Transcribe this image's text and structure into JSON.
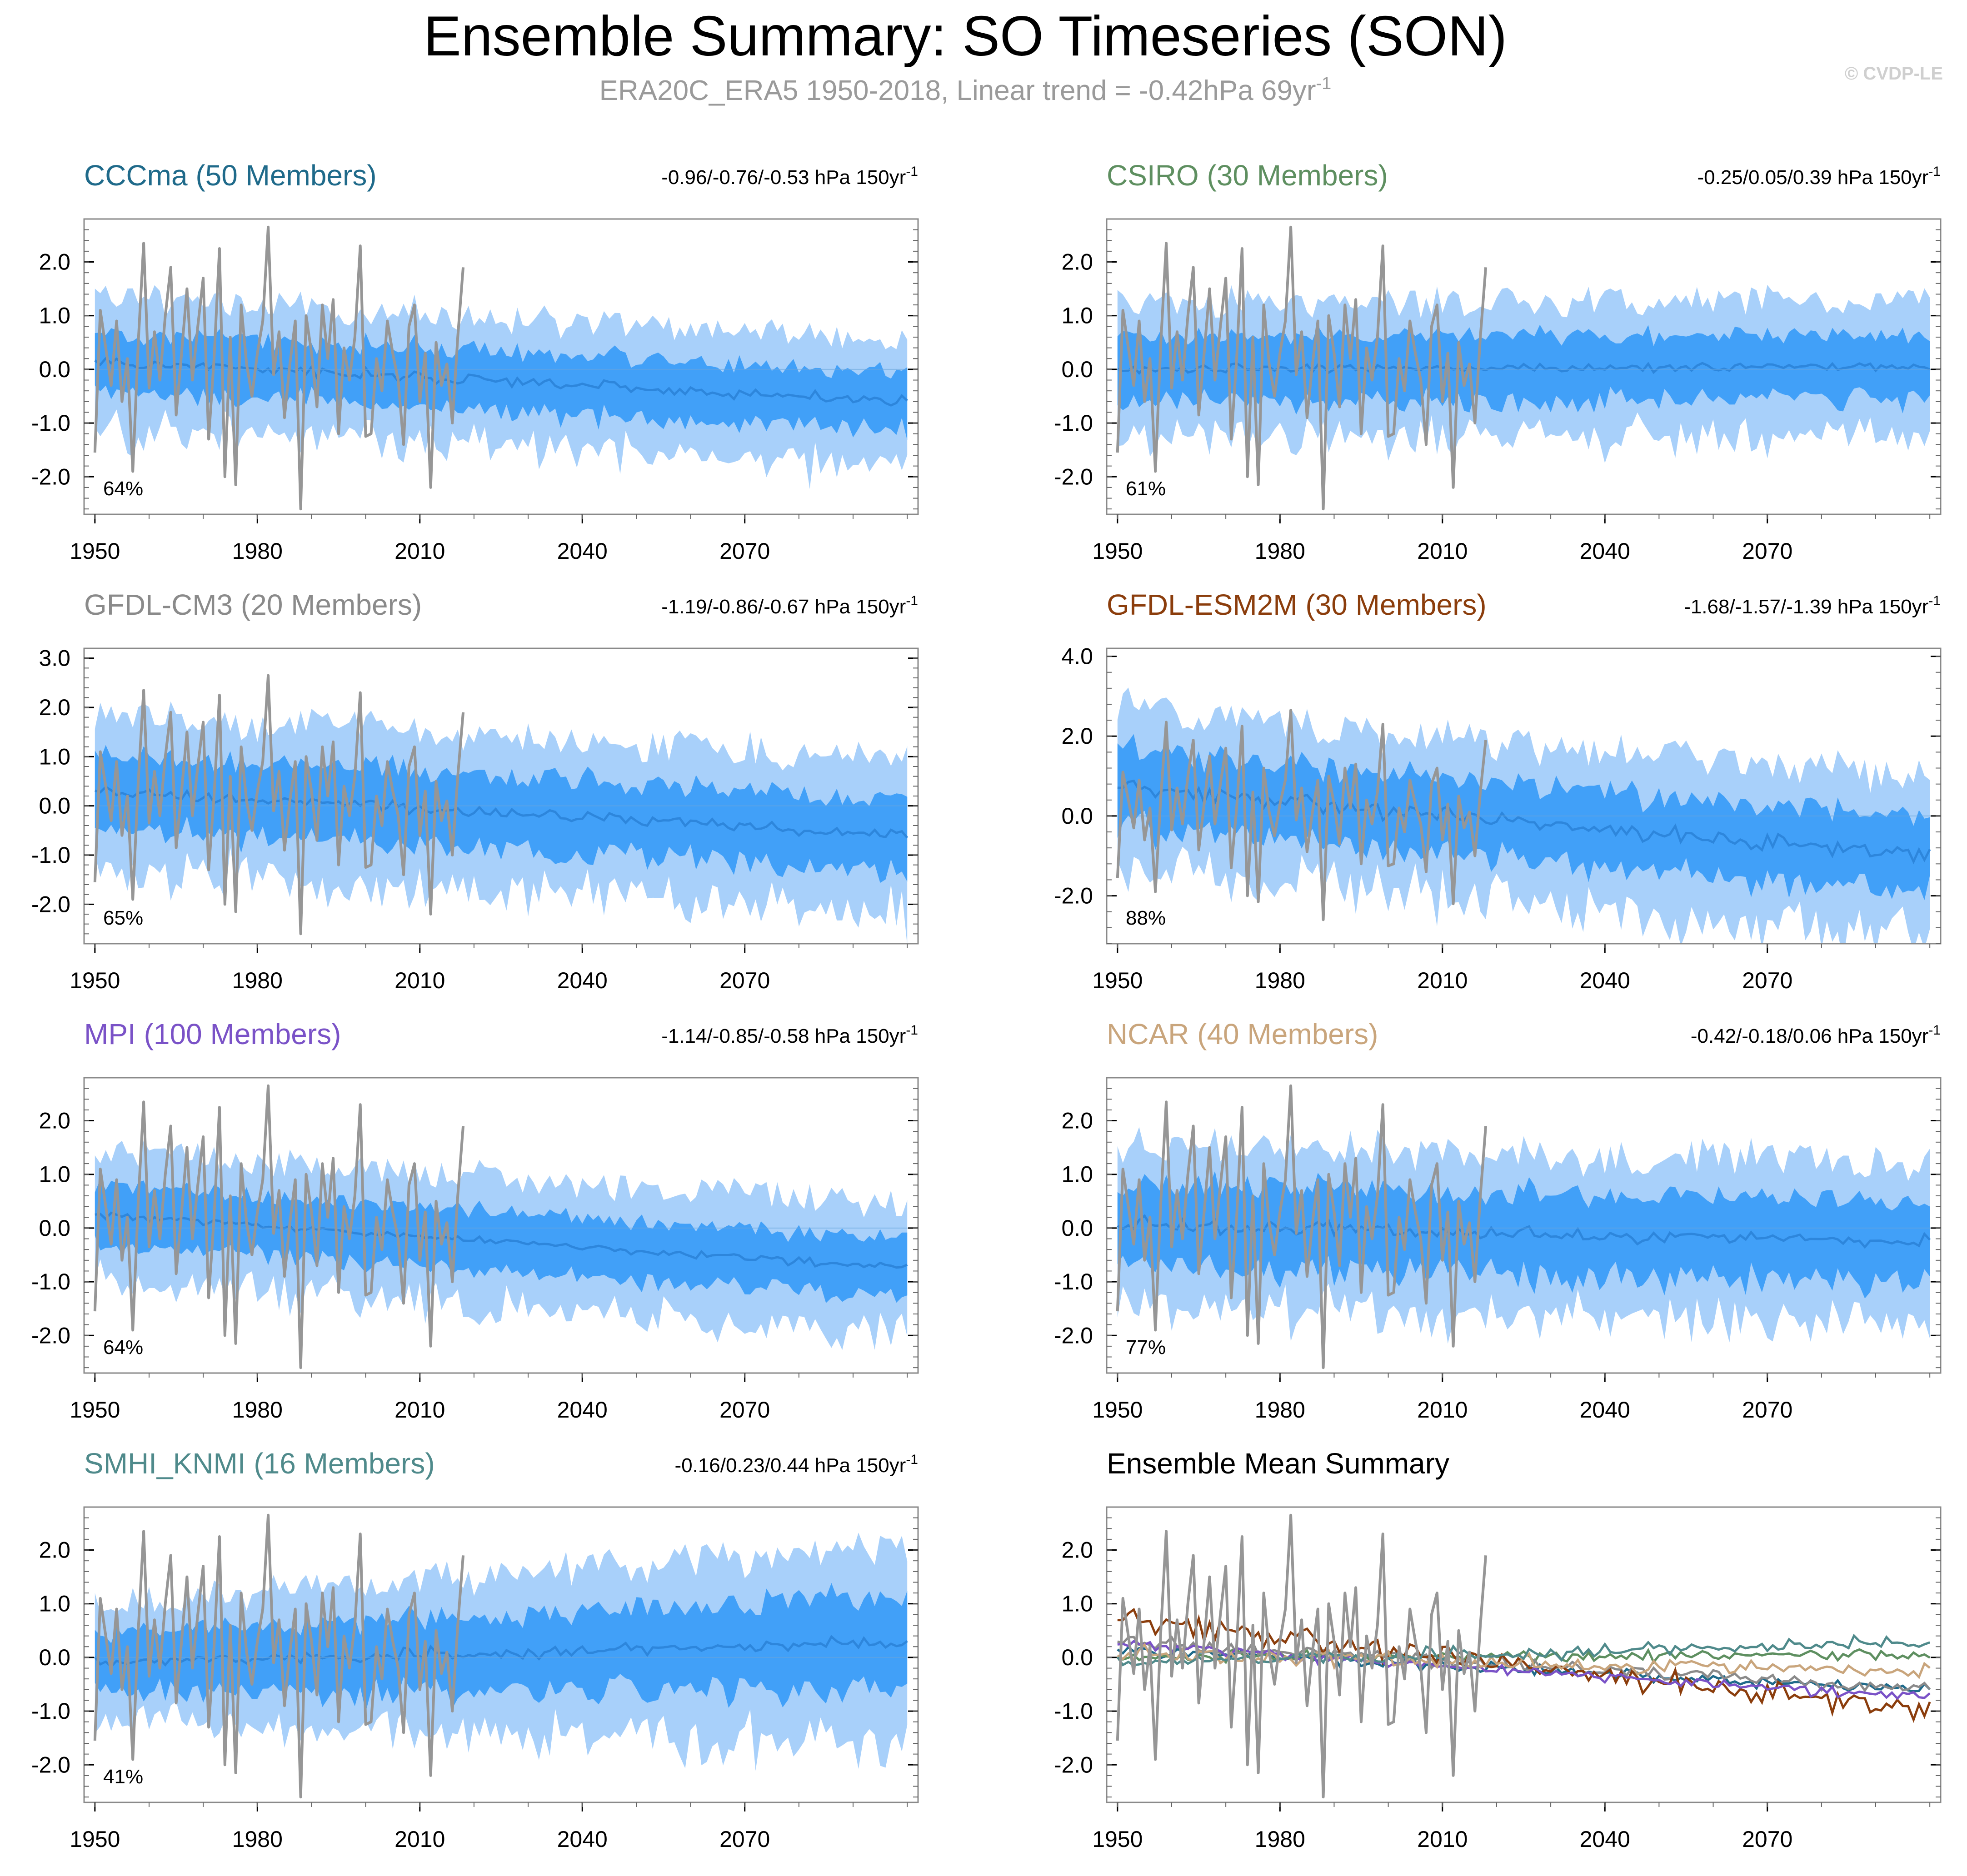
{
  "figure": {
    "title": "Ensemble Summary: SO Timeseries (SON)",
    "subtitle_main": "ERA20C_ERA5 1950-2018, Linear trend = -0.42hPa 69yr",
    "subtitle_sup": "-1",
    "watermark": "© CVDP-LE",
    "trend_sup": "-1"
  },
  "colors": {
    "outer_band": "#a8d0fa",
    "inner_band": "#41a0f8",
    "ens_mean": "#2d86dc",
    "obs": "#969696",
    "axis": "#000000"
  },
  "chart_data": [
    {
      "type": "line",
      "name": "CCCma",
      "title": "CCCma (50 Members)",
      "title_color": "#1f6a8a",
      "trend_label": "-0.96/-0.76/-0.53 hPa 150yr",
      "pct_label": "64%",
      "x_range": [
        1950,
        2100
      ],
      "xticks": [
        1950,
        1980,
        2010,
        2040,
        2070
      ],
      "ylim": [
        -2.7,
        2.8
      ],
      "yticks": [
        -2.0,
        -1.0,
        0.0,
        1.0,
        2.0
      ],
      "ytick_labels": [
        "-2.0",
        "-1.0",
        "0.0",
        "1.0",
        "2.0"
      ],
      "ens_mean_start": 0.15,
      "ens_mean_end": -0.6,
      "inner_spread": 0.55,
      "outer_spread": 1.15,
      "mean_variability": 0.15
    },
    {
      "type": "line",
      "name": "CSIRO",
      "title": "CSIRO (30 Members)",
      "title_color": "#5e8f60",
      "trend_label": "-0.25/0.05/0.39 hPa 150yr",
      "pct_label": "61%",
      "x_range": [
        1950,
        2100
      ],
      "xticks": [
        1950,
        1980,
        2010,
        2040,
        2070
      ],
      "ylim": [
        -2.7,
        2.8
      ],
      "yticks": [
        -2.0,
        -1.0,
        0.0,
        1.0,
        2.0
      ],
      "ytick_labels": [
        "-2.0",
        "-1.0",
        "0.0",
        "1.0",
        "2.0"
      ],
      "ens_mean_start": 0.0,
      "ens_mean_end": 0.05,
      "inner_spread": 0.6,
      "outer_spread": 1.2,
      "mean_variability": 0.12
    },
    {
      "type": "line",
      "name": "GFDL-CM3",
      "title": "GFDL-CM3 (20 Members)",
      "title_color": "#8a8a8a",
      "trend_label": "-1.19/-0.86/-0.67 hPa 150yr",
      "pct_label": "65%",
      "x_range": [
        1950,
        2100
      ],
      "xticks": [
        1950,
        1980,
        2010,
        2040,
        2070
      ],
      "ylim": [
        -2.8,
        3.2
      ],
      "yticks": [
        -2.0,
        -1.0,
        0.0,
        1.0,
        2.0,
        3.0
      ],
      "ytick_labels": [
        "-2.0",
        "-1.0",
        "0.0",
        "1.0",
        "2.0",
        "3.0"
      ],
      "ens_mean_start": 0.3,
      "ens_mean_end": -0.6,
      "inner_spread": 0.75,
      "outer_spread": 1.5,
      "mean_variability": 0.18
    },
    {
      "type": "line",
      "name": "GFDL-ESM2M",
      "title": "GFDL-ESM2M (30 Members)",
      "title_color": "#8b3d0c",
      "trend_label": "-1.68/-1.57/-1.39 hPa 150yr",
      "pct_label": "88%",
      "x_range": [
        1950,
        2100
      ],
      "xticks": [
        1950,
        1980,
        2010,
        2040,
        2070
      ],
      "ylim": [
        -3.2,
        4.2
      ],
      "yticks": [
        -2.0,
        0.0,
        2.0,
        4.0
      ],
      "ytick_labels": [
        "-2.0",
        "0.0",
        "2.0",
        "4.0"
      ],
      "ens_mean_start": 0.7,
      "ens_mean_end": -1.0,
      "inner_spread": 0.95,
      "outer_spread": 1.9,
      "mean_variability": 0.3
    },
    {
      "type": "line",
      "name": "MPI",
      "title": "MPI (100 Members)",
      "title_color": "#7a52c7",
      "trend_label": "-1.14/-0.85/-0.58 hPa 150yr",
      "pct_label": "64%",
      "x_range": [
        1950,
        2100
      ],
      "xticks": [
        1950,
        1980,
        2010,
        2040,
        2070
      ],
      "ylim": [
        -2.7,
        2.8
      ],
      "yticks": [
        -2.0,
        -1.0,
        0.0,
        1.0,
        2.0
      ],
      "ytick_labels": [
        "-2.0",
        "-1.0",
        "0.0",
        "1.0",
        "2.0"
      ],
      "ens_mean_start": 0.25,
      "ens_mean_end": -0.75,
      "inner_spread": 0.55,
      "outer_spread": 1.15,
      "mean_variability": 0.1
    },
    {
      "type": "line",
      "name": "NCAR",
      "title": "NCAR (40 Members)",
      "title_color": "#c9a57c",
      "trend_label": "-0.42/-0.18/0.06 hPa 150yr",
      "pct_label": "77%",
      "x_range": [
        1950,
        2100
      ],
      "xticks": [
        1950,
        1980,
        2010,
        2040,
        2070
      ],
      "ylim": [
        -2.7,
        2.8
      ],
      "yticks": [
        -2.0,
        -1.0,
        0.0,
        1.0,
        2.0
      ],
      "ytick_labels": [
        "-2.0",
        "-1.0",
        "0.0",
        "1.0",
        "2.0"
      ],
      "ens_mean_start": 0.05,
      "ens_mean_end": -0.25,
      "inner_spread": 0.75,
      "outer_spread": 1.45,
      "mean_variability": 0.2
    },
    {
      "type": "line",
      "name": "SMHI_KNMI",
      "title": "SMHI_KNMI (16 Members)",
      "title_color": "#4f8a8b",
      "trend_label": "-0.16/0.23/0.44 hPa 150yr",
      "pct_label": "41%",
      "x_range": [
        1950,
        2100
      ],
      "xticks": [
        1950,
        1980,
        2010,
        2040,
        2070
      ],
      "ylim": [
        -2.7,
        2.8
      ],
      "yticks": [
        -2.0,
        -1.0,
        0.0,
        1.0,
        2.0
      ],
      "ytick_labels": [
        "-2.0",
        "-1.0",
        "0.0",
        "1.0",
        "2.0"
      ],
      "ens_mean_start": -0.1,
      "ens_mean_end": 0.25,
      "inner_spread": 0.55,
      "outer_spread": 1.1,
      "mean_variability": 0.18,
      "spread_growth": 0.6
    },
    {
      "type": "line",
      "name": "Ensemble Mean Summary",
      "title": "Ensemble Mean Summary",
      "title_color": "#000000",
      "trend_label": "",
      "pct_label": "",
      "x_range": [
        1950,
        2100
      ],
      "xticks": [
        1950,
        1980,
        2010,
        2040,
        2070
      ],
      "ylim": [
        -2.7,
        2.8
      ],
      "yticks": [
        -2.0,
        -1.0,
        0.0,
        1.0,
        2.0
      ],
      "ytick_labels": [
        "-2.0",
        "-1.0",
        "0.0",
        "1.0",
        "2.0"
      ],
      "summary": true
    }
  ],
  "observations": {
    "name": "ERA20C_ERA5",
    "years": [
      1950,
      2018
    ],
    "values": [
      -1.55,
      1.1,
      0.4,
      -0.3,
      0.9,
      -0.6,
      0.2,
      -1.9,
      0.5,
      2.35,
      -0.35,
      0.7,
      -0.2,
      1.0,
      1.9,
      -0.85,
      0.3,
      1.5,
      -0.2,
      0.8,
      1.7,
      -1.3,
      0.2,
      2.25,
      -2.0,
      0.6,
      -2.15,
      1.2,
      0.1,
      -0.5,
      0.3,
      0.9,
      2.65,
      -0.1,
      0.7,
      -0.9,
      0.1,
      0.9,
      -2.6,
      1.0,
      0.3,
      -0.7,
      1.2,
      0.2,
      1.3,
      -1.2,
      0.4,
      -0.2,
      0.6,
      2.3,
      -1.25,
      -1.2,
      0.2,
      -0.4,
      0.9,
      0.3,
      -0.2,
      -1.4,
      0.8,
      1.2,
      -0.6,
      0.3,
      -2.2,
      0.5,
      -0.3,
      0.1,
      -1.0,
      0.6,
      1.9
    ]
  }
}
